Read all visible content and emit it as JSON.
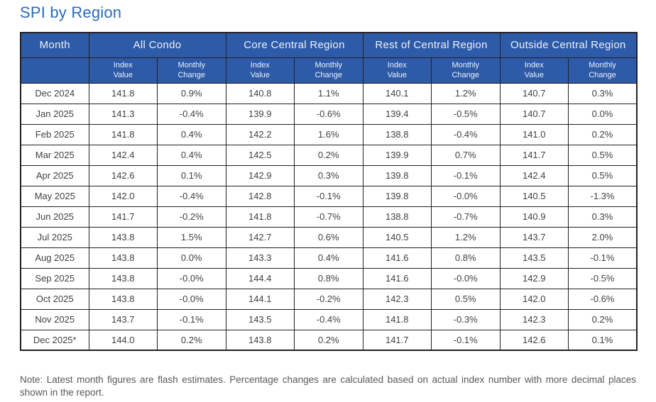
{
  "title": "SPI by Region",
  "colors": {
    "header_bg": "#2e5ba8",
    "header_text": "#edf1f8",
    "title_text": "#2a6bbf",
    "border": "#231f20",
    "cell_text": "#414042",
    "note_text": "#58595b"
  },
  "table": {
    "month_header": "Month",
    "groups": [
      {
        "label": "All Condo"
      },
      {
        "label": "Core Central Region"
      },
      {
        "label": "Rest of Central Region"
      },
      {
        "label": "Outside Central Region"
      }
    ],
    "sub_headers": [
      "Index\nValue",
      "Monthly\nChange"
    ],
    "rows": [
      {
        "month": "Dec 2024",
        "values": [
          "141.8",
          "0.9%",
          "140.8",
          "1.1%",
          "140.1",
          "1.2%",
          "140.7",
          "0.3%"
        ]
      },
      {
        "month": "Jan 2025",
        "values": [
          "141.3",
          "-0.4%",
          "139.9",
          "-0.6%",
          "139.4",
          "-0.5%",
          "140.7",
          "0.0%"
        ]
      },
      {
        "month": "Feb 2025",
        "values": [
          "141.8",
          "0.4%",
          "142.2",
          "1.6%",
          "138.8",
          "-0.4%",
          "141.0",
          "0.2%"
        ]
      },
      {
        "month": "Mar 2025",
        "values": [
          "142.4",
          "0.4%",
          "142.5",
          "0.2%",
          "139.9",
          "0.7%",
          "141.7",
          "0.5%"
        ]
      },
      {
        "month": "Apr 2025",
        "values": [
          "142.6",
          "0.1%",
          "142.9",
          "0.3%",
          "139.8",
          "-0.1%",
          "142.4",
          "0.5%"
        ]
      },
      {
        "month": "May 2025",
        "values": [
          "142.0",
          "-0.4%",
          "142.8",
          "-0.1%",
          "139.8",
          "-0.0%",
          "140.5",
          "-1.3%"
        ]
      },
      {
        "month": "Jun 2025",
        "values": [
          "141.7",
          "-0.2%",
          "141.8",
          "-0.7%",
          "138.8",
          "-0.7%",
          "140.9",
          "0.3%"
        ]
      },
      {
        "month": "Jul 2025",
        "values": [
          "143.8",
          "1.5%",
          "142.7",
          "0.6%",
          "140.5",
          "1.2%",
          "143.7",
          "2.0%"
        ]
      },
      {
        "month": "Aug 2025",
        "values": [
          "143.8",
          "0.0%",
          "143.3",
          "0.4%",
          "141.6",
          "0.8%",
          "143.5",
          "-0.1%"
        ]
      },
      {
        "month": "Sep 2025",
        "values": [
          "143.8",
          "-0.0%",
          "144.4",
          "0.8%",
          "141.6",
          "-0.0%",
          "142.9",
          "-0.5%"
        ]
      },
      {
        "month": "Oct 2025",
        "values": [
          "143.8",
          "-0.0%",
          "144.1",
          "-0.2%",
          "142.3",
          "0.5%",
          "142.0",
          "-0.6%"
        ]
      },
      {
        "month": "Nov 2025",
        "values": [
          "143.7",
          "-0.1%",
          "143.5",
          "-0.4%",
          "141.8",
          "-0.3%",
          "142.3",
          "0.2%"
        ]
      },
      {
        "month": "Dec 2025*",
        "values": [
          "144.0",
          "0.2%",
          "143.8",
          "0.2%",
          "141.7",
          "-0.1%",
          "142.6",
          "0.1%"
        ]
      }
    ]
  },
  "note": "Note: Latest month figures are flash estimates. Percentage changes are calculated based on actual index number with more decimal places shown in the report."
}
